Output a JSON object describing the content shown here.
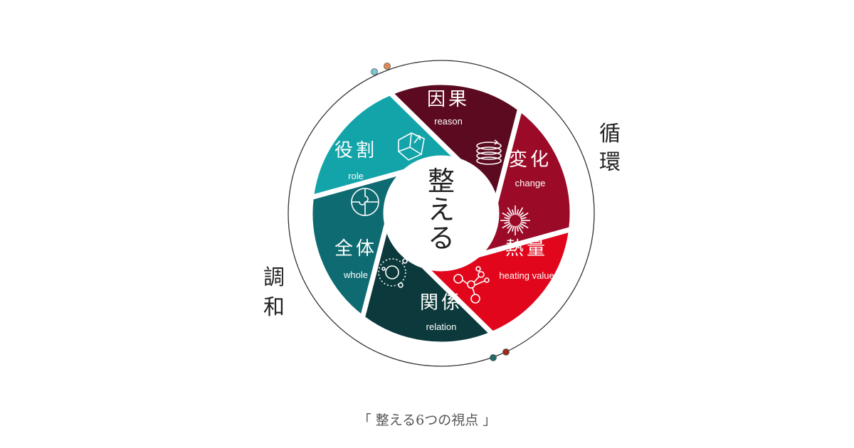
{
  "center_label": [
    "整",
    "え",
    "る"
  ],
  "side_labels": {
    "right": [
      "循",
      "環"
    ],
    "left": [
      "調",
      "和"
    ]
  },
  "segments": [
    {
      "jp": "因果",
      "en": "reason",
      "color": "#5b0a1f",
      "icon": "cube-arrow-icon"
    },
    {
      "jp": "変化",
      "en": "change",
      "color": "#9b0b27",
      "icon": "spiral-coil-icon"
    },
    {
      "jp": "熱量",
      "en": "heating value",
      "color": "#e1061b",
      "icon": "burst-icon"
    },
    {
      "jp": "関係",
      "en": "relation",
      "color": "#0c393b",
      "icon": "network-nodes-icon"
    },
    {
      "jp": "全体",
      "en": "whole",
      "color": "#0e6b71",
      "icon": "orbit-icon"
    },
    {
      "jp": "役割",
      "en": "role",
      "color": "#12a4a9",
      "icon": "puzzle-circle-icon"
    }
  ],
  "ring_dots": [
    "#7fc4d2",
    "#e08a55",
    "#1f6b66",
    "#9a2a1e"
  ],
  "caption": "「 整える6つの視点 」"
}
